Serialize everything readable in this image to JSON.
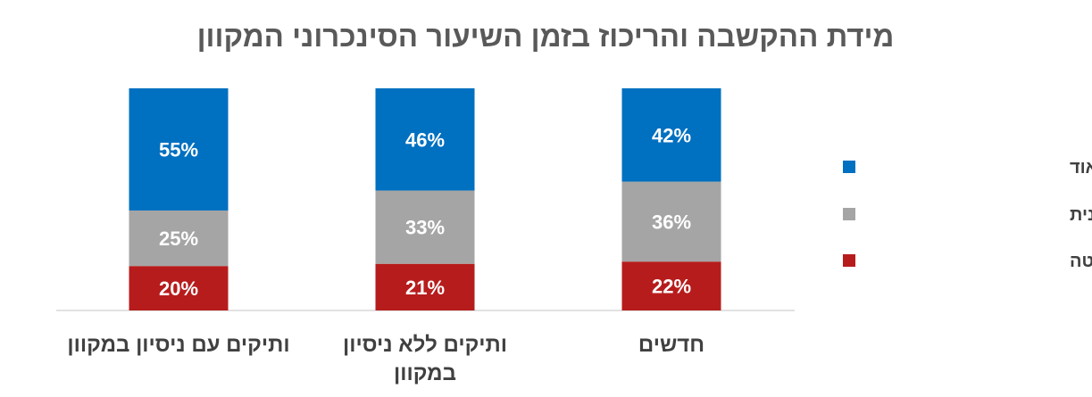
{
  "chart_data": {
    "type": "bar",
    "stacked": true,
    "percent": true,
    "title": "מידת ההקשבה והריכוז בזמן השיעור הסינכרוני המקוון",
    "categories": [
      [
        "ותיקים עם ניסיון במקוון"
      ],
      [
        "ותיקים ללא ניסיון",
        "במקוון"
      ],
      [
        "חדשים"
      ]
    ],
    "series": [
      {
        "name": "כלל לא/ במידה מועטה",
        "values": [
          20,
          21,
          22
        ],
        "labels": [
          "20%",
          "21%",
          "22%"
        ],
        "color": "#B71C1C"
      },
      {
        "name": "במידה בינונית",
        "values": [
          25,
          33,
          36
        ],
        "labels": [
          "25%",
          "33%",
          "36%"
        ],
        "color": "#A5A5A5"
      },
      {
        "name": "במידה רבה/ רבה מאוד",
        "values": [
          55,
          46,
          42
        ],
        "labels": [
          "55%",
          "46%",
          "42%"
        ],
        "color": "#0070C0"
      }
    ],
    "ylim": [
      0,
      100
    ],
    "grid": false,
    "legend_position": "right",
    "legend_order": [
      "במידה רבה/ רבה מאוד",
      "במידה בינונית",
      "כלל לא/ במידה מועטה"
    ]
  }
}
